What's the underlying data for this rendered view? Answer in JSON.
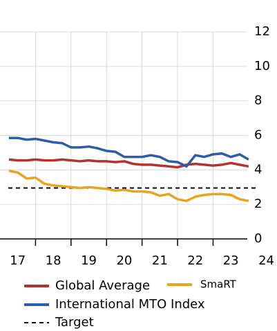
{
  "chart_data": {
    "type": "line",
    "x": [
      17.25,
      17.5,
      17.75,
      18,
      18.25,
      18.5,
      18.75,
      19,
      19.25,
      19.5,
      19.75,
      20,
      20.25,
      20.5,
      20.75,
      21,
      21.25,
      21.5,
      21.75,
      22,
      22.25,
      22.5,
      22.75,
      23,
      23.25,
      23.5,
      23.75,
      24
    ],
    "series": [
      {
        "name": "Global Average",
        "color": "#b5322e",
        "values": [
          4.6,
          4.55,
          4.55,
          4.6,
          4.55,
          4.55,
          4.6,
          4.55,
          4.5,
          4.55,
          4.5,
          4.5,
          4.45,
          4.5,
          4.35,
          4.3,
          4.3,
          4.25,
          4.2,
          4.15,
          4.3,
          4.35,
          4.3,
          4.25,
          4.3,
          4.4,
          4.3,
          4.2
        ]
      },
      {
        "name": "SmaRT",
        "color": "#e8a41f",
        "values": [
          3.95,
          3.85,
          3.5,
          3.55,
          3.2,
          3.1,
          3.05,
          3.0,
          2.95,
          3.0,
          2.95,
          2.9,
          2.8,
          2.85,
          2.75,
          2.75,
          2.7,
          2.5,
          2.6,
          2.3,
          2.2,
          2.45,
          2.55,
          2.6,
          2.6,
          2.55,
          2.3,
          2.2
        ]
      },
      {
        "name": "International MTO Index",
        "color": "#2e5da8",
        "values": [
          5.85,
          5.85,
          5.75,
          5.8,
          5.7,
          5.6,
          5.55,
          5.3,
          5.3,
          5.35,
          5.25,
          5.1,
          5.05,
          4.75,
          4.75,
          4.75,
          4.85,
          4.75,
          4.5,
          4.45,
          4.2,
          4.85,
          4.75,
          4.9,
          4.95,
          4.75,
          4.9,
          4.6
        ]
      }
    ],
    "target": {
      "name": "Target",
      "value": 2.95,
      "color": "#000000"
    },
    "xlim": [
      17,
      24.8
    ],
    "xticks": [
      {
        "value": 17.5,
        "label": "17"
      },
      {
        "value": 18.5,
        "label": "18"
      },
      {
        "value": 19.5,
        "label": "19"
      },
      {
        "value": 20.5,
        "label": "20"
      },
      {
        "value": 21.5,
        "label": "21"
      },
      {
        "value": 22.5,
        "label": "22"
      },
      {
        "value": 23.5,
        "label": "23"
      },
      {
        "value": 24.5,
        "label": "24"
      }
    ],
    "ylim": [
      0,
      12
    ],
    "yticks": [
      0,
      2,
      4,
      6,
      8,
      10,
      12
    ],
    "grid": true
  }
}
